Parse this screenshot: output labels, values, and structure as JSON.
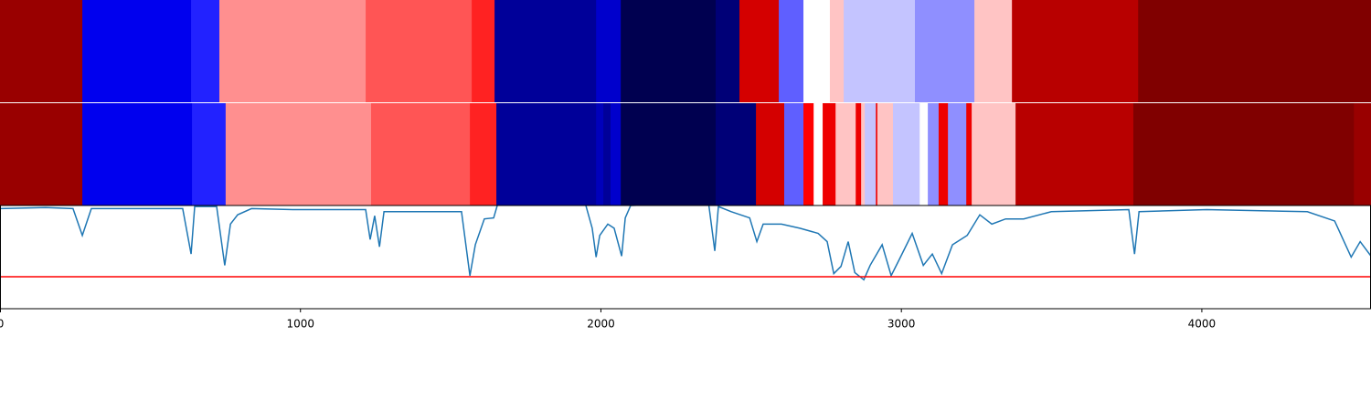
{
  "chart_data": [
    {
      "type": "segments",
      "xlim": [
        0,
        4563
      ],
      "segments": [
        {
          "start": 0,
          "end": 274,
          "color": "#990000"
        },
        {
          "start": 274,
          "end": 636,
          "color": "#0000ee"
        },
        {
          "start": 636,
          "end": 730,
          "color": "#2222ff"
        },
        {
          "start": 730,
          "end": 1217,
          "color": "#ff8f8f"
        },
        {
          "start": 1217,
          "end": 1570,
          "color": "#ff5555"
        },
        {
          "start": 1570,
          "end": 1646,
          "color": "#ff2222"
        },
        {
          "start": 1646,
          "end": 1984,
          "color": "#000099"
        },
        {
          "start": 1984,
          "end": 2066,
          "color": "#0000cc"
        },
        {
          "start": 2066,
          "end": 2382,
          "color": "#000050"
        },
        {
          "start": 2382,
          "end": 2461,
          "color": "#000077"
        },
        {
          "start": 2461,
          "end": 2592,
          "color": "#d40000"
        },
        {
          "start": 2592,
          "end": 2674,
          "color": "#5f5fff"
        },
        {
          "start": 2674,
          "end": 2762,
          "color": "#ffffff"
        },
        {
          "start": 2762,
          "end": 2808,
          "color": "#ffc4c4"
        },
        {
          "start": 2808,
          "end": 3045,
          "color": "#c4c4ff"
        },
        {
          "start": 3045,
          "end": 3243,
          "color": "#8f8fff"
        },
        {
          "start": 3243,
          "end": 3368,
          "color": "#ffc4c4"
        },
        {
          "start": 3368,
          "end": 3788,
          "color": "#b80000"
        },
        {
          "start": 3788,
          "end": 4563,
          "color": "#800000"
        }
      ]
    },
    {
      "type": "segments",
      "xlim": [
        0,
        4563
      ],
      "segments": [
        {
          "start": 0,
          "end": 274,
          "color": "#990000"
        },
        {
          "start": 274,
          "end": 639,
          "color": "#0000ee"
        },
        {
          "start": 639,
          "end": 751,
          "color": "#2222ff"
        },
        {
          "start": 751,
          "end": 1235,
          "color": "#ff8f8f"
        },
        {
          "start": 1235,
          "end": 1564,
          "color": "#ff5555"
        },
        {
          "start": 1564,
          "end": 1652,
          "color": "#ff2222"
        },
        {
          "start": 1652,
          "end": 1984,
          "color": "#000099"
        },
        {
          "start": 1984,
          "end": 2008,
          "color": "#0000bb"
        },
        {
          "start": 2008,
          "end": 2032,
          "color": "#000099"
        },
        {
          "start": 2032,
          "end": 2066,
          "color": "#0000cc"
        },
        {
          "start": 2066,
          "end": 2382,
          "color": "#000050"
        },
        {
          "start": 2382,
          "end": 2516,
          "color": "#000077"
        },
        {
          "start": 2516,
          "end": 2610,
          "color": "#d40000"
        },
        {
          "start": 2610,
          "end": 2674,
          "color": "#5f5fff"
        },
        {
          "start": 2674,
          "end": 2708,
          "color": "#ff0000"
        },
        {
          "start": 2708,
          "end": 2738,
          "color": "#ffffff"
        },
        {
          "start": 2738,
          "end": 2781,
          "color": "#ee0000"
        },
        {
          "start": 2781,
          "end": 2848,
          "color": "#ffc4c4"
        },
        {
          "start": 2848,
          "end": 2866,
          "color": "#ee0000"
        },
        {
          "start": 2866,
          "end": 2878,
          "color": "#ffc4c4"
        },
        {
          "start": 2878,
          "end": 2915,
          "color": "#c4c4ff"
        },
        {
          "start": 2915,
          "end": 2920,
          "color": "#ee0000"
        },
        {
          "start": 2920,
          "end": 2972,
          "color": "#ffc4c4"
        },
        {
          "start": 2972,
          "end": 3061,
          "color": "#c4c4ff"
        },
        {
          "start": 3061,
          "end": 3088,
          "color": "#ffffff"
        },
        {
          "start": 3088,
          "end": 3124,
          "color": "#8f8fff"
        },
        {
          "start": 3124,
          "end": 3155,
          "color": "#ee0000"
        },
        {
          "start": 3155,
          "end": 3216,
          "color": "#8f8fff"
        },
        {
          "start": 3216,
          "end": 3234,
          "color": "#ee0000"
        },
        {
          "start": 3234,
          "end": 3380,
          "color": "#ffc4c4"
        },
        {
          "start": 3380,
          "end": 3772,
          "color": "#b80000"
        },
        {
          "start": 3772,
          "end": 4506,
          "color": "#800000"
        },
        {
          "start": 4506,
          "end": 4563,
          "color": "#990000"
        }
      ]
    },
    {
      "type": "line",
      "xlim": [
        0,
        4563
      ],
      "ylim": [
        0,
        1
      ],
      "xticks": [
        0,
        1000,
        2000,
        3000,
        4000
      ],
      "color": "#1f77b4",
      "threshold": 0.31,
      "threshold_color": "#ff0000",
      "x": [
        0,
        152,
        243,
        274,
        304,
        608,
        636,
        648,
        721,
        748,
        767,
        791,
        837,
        974,
        1217,
        1232,
        1247,
        1263,
        1278,
        1536,
        1564,
        1582,
        1612,
        1643,
        1658,
        1947,
        1971,
        1984,
        1996,
        2023,
        2044,
        2069,
        2081,
        2099,
        2358,
        2379,
        2391,
        2434,
        2495,
        2519,
        2540,
        2601,
        2662,
        2723,
        2753,
        2775,
        2799,
        2823,
        2845,
        2875,
        2896,
        2936,
        2966,
        2997,
        3036,
        3073,
        3103,
        3134,
        3170,
        3219,
        3261,
        3301,
        3347,
        3407,
        3499,
        3757,
        3776,
        3791,
        4016,
        4351,
        4442,
        4497,
        4527,
        4563
      ],
      "values": [
        0.97,
        0.98,
        0.97,
        0.71,
        0.97,
        0.97,
        0.53,
        0.99,
        0.99,
        0.42,
        0.82,
        0.91,
        0.97,
        0.96,
        0.96,
        0.67,
        0.9,
        0.6,
        0.94,
        0.94,
        0.32,
        0.62,
        0.87,
        0.88,
        1.03,
        1.03,
        0.78,
        0.5,
        0.71,
        0.82,
        0.78,
        0.51,
        0.88,
        1.0,
        1.03,
        0.56,
        0.99,
        0.94,
        0.88,
        0.65,
        0.82,
        0.82,
        0.78,
        0.73,
        0.65,
        0.34,
        0.41,
        0.65,
        0.35,
        0.28,
        0.42,
        0.62,
        0.32,
        0.5,
        0.73,
        0.42,
        0.53,
        0.34,
        0.62,
        0.71,
        0.91,
        0.82,
        0.87,
        0.87,
        0.94,
        0.96,
        0.53,
        0.94,
        0.96,
        0.94,
        0.85,
        0.5,
        0.65,
        0.51
      ]
    }
  ]
}
